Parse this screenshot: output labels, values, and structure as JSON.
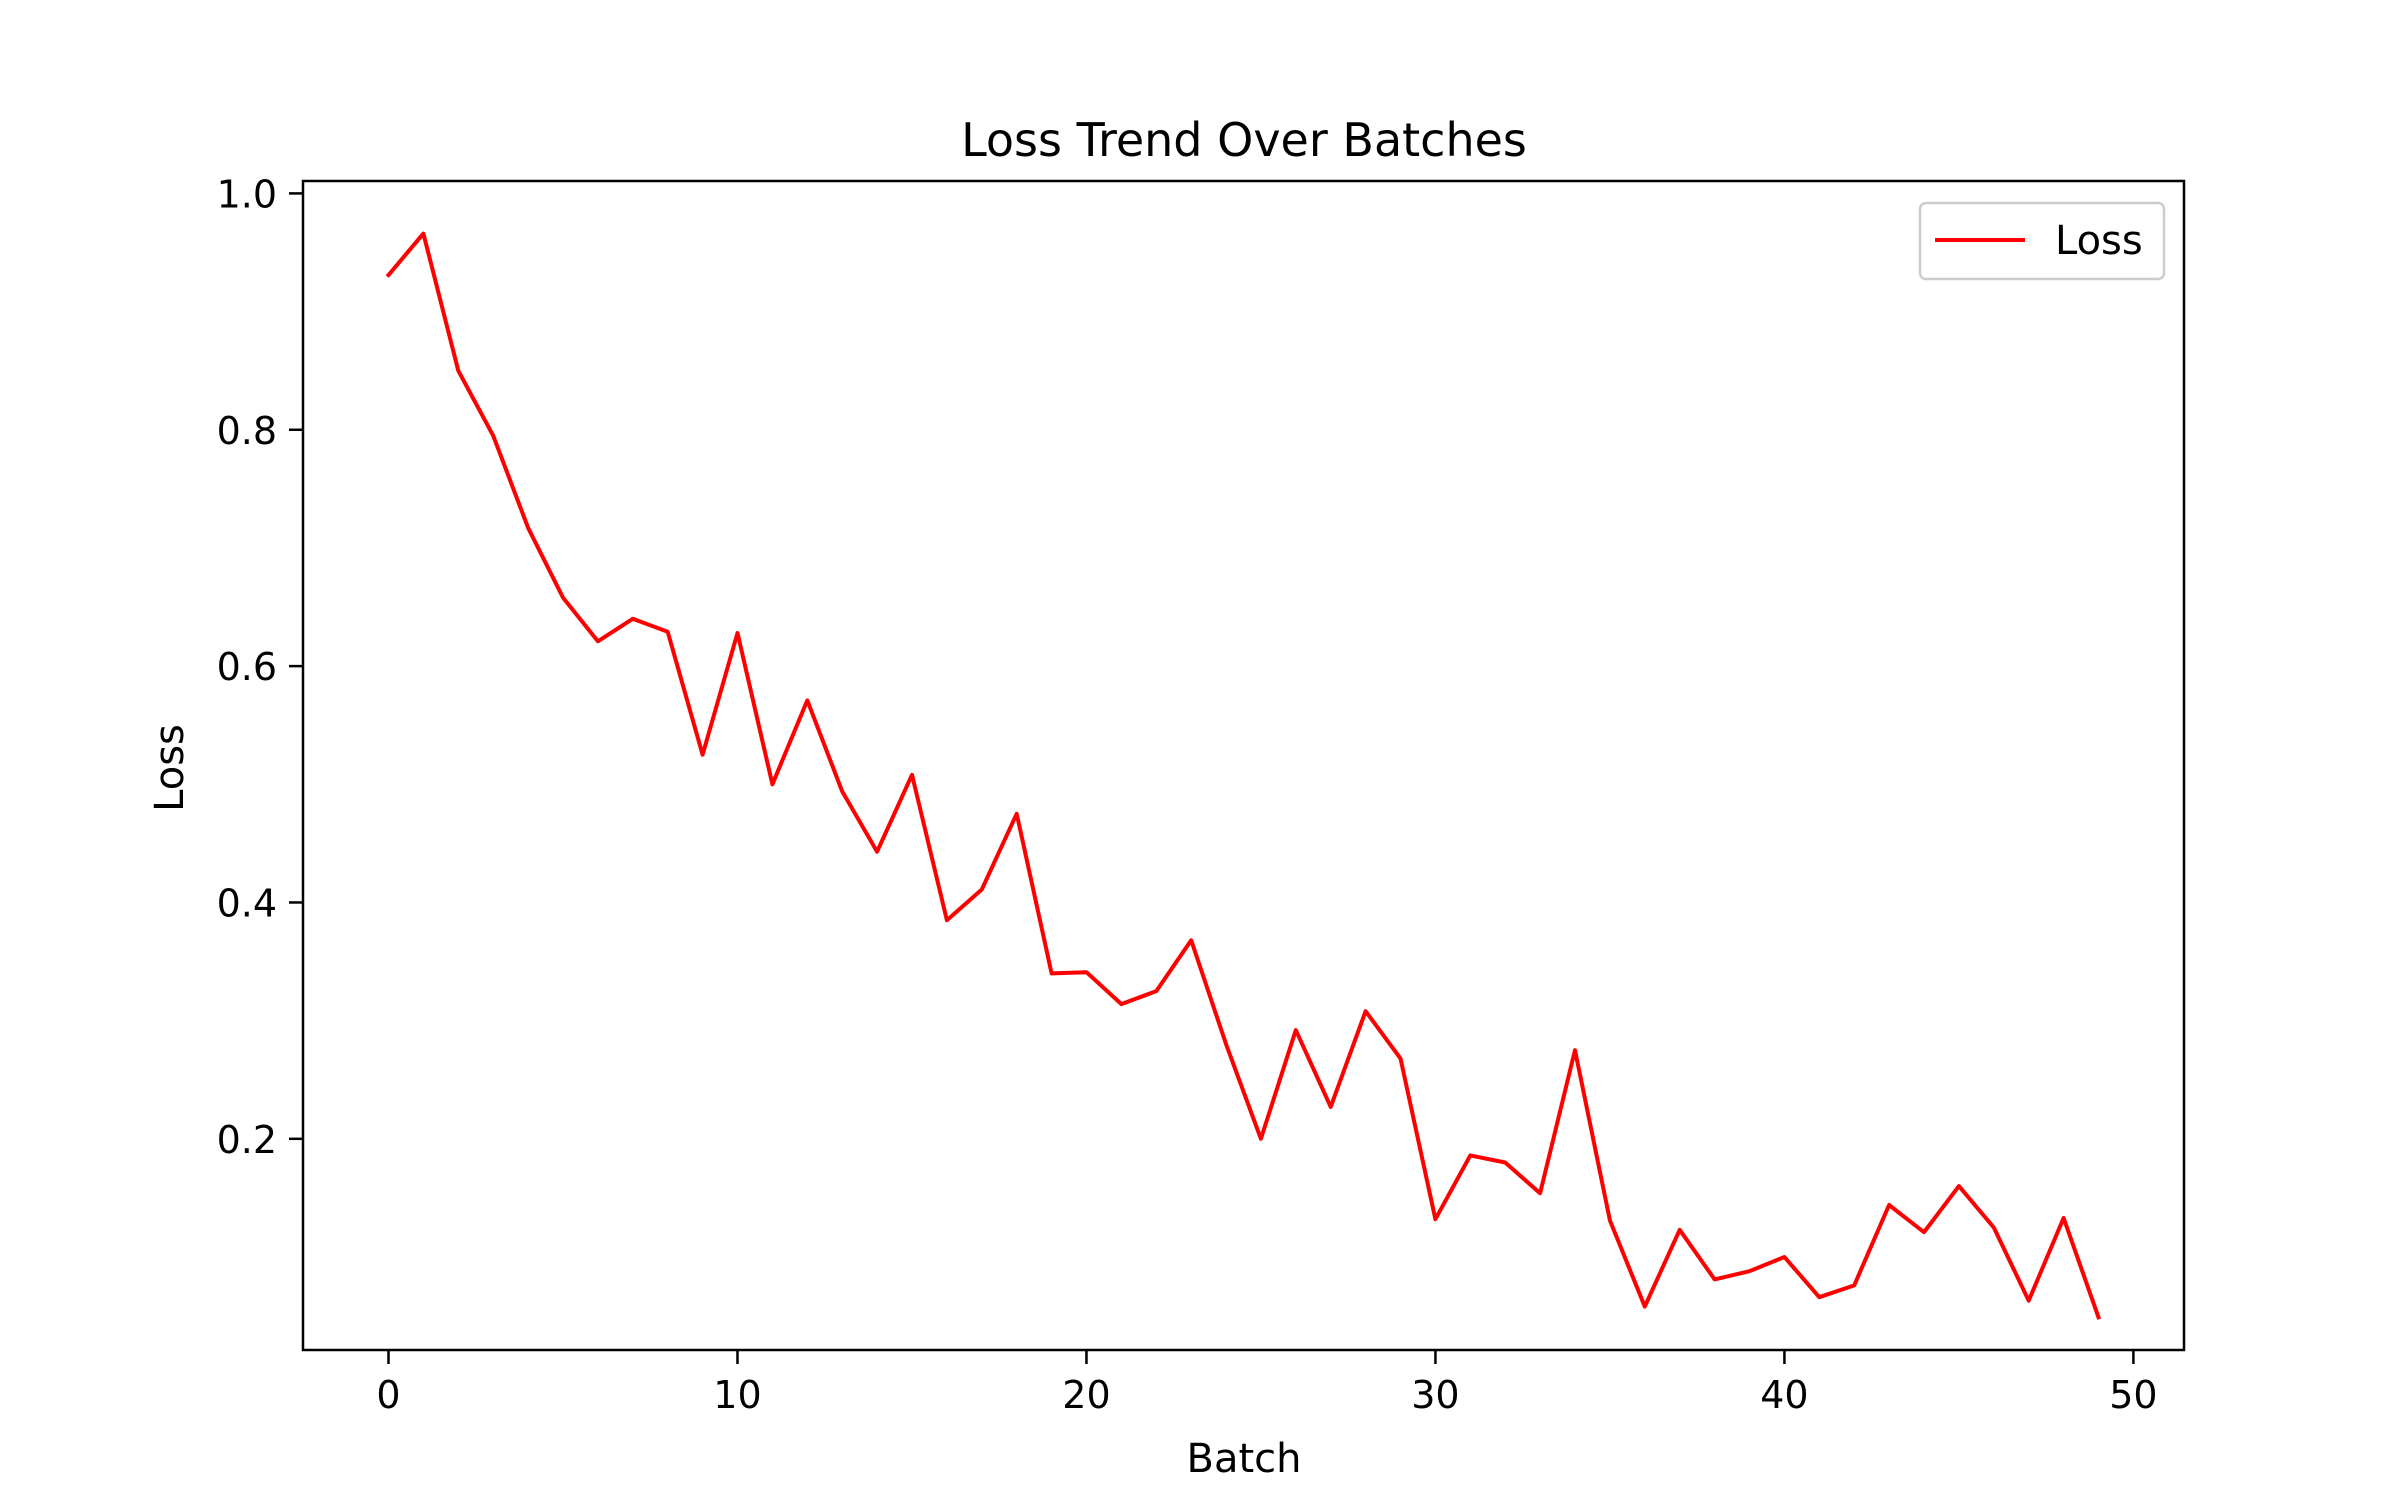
{
  "chart_data": {
    "type": "line",
    "title": "Loss Trend Over Batches",
    "xlabel": "Batch",
    "ylabel": "Loss",
    "xlim": [
      -2.45,
      51.45
    ],
    "ylim": [
      0.0213,
      1.0105
    ],
    "xticks": [
      0,
      10,
      20,
      30,
      40,
      50
    ],
    "xtick_labels": [
      "0",
      "10",
      "20",
      "30",
      "40",
      "50"
    ],
    "yticks": [
      0.2,
      0.4,
      0.6,
      0.8,
      1.0
    ],
    "ytick_labels": [
      "0.2",
      "0.4",
      "0.6",
      "0.8",
      "1.0"
    ],
    "grid": false,
    "legend": {
      "position": "top-right"
    },
    "series": [
      {
        "name": "Loss",
        "color": "#ff0000",
        "x": [
          0,
          1,
          2,
          3,
          4,
          5,
          6,
          7,
          8,
          9,
          10,
          11,
          12,
          13,
          14,
          15,
          16,
          17,
          18,
          19,
          20,
          21,
          22,
          23,
          24,
          25,
          26,
          27,
          28,
          29,
          30,
          31,
          32,
          33,
          34,
          35,
          36,
          37,
          38,
          39,
          40,
          41,
          42,
          43,
          44,
          45,
          46,
          47,
          48,
          49
        ],
        "y": [
          0.931,
          0.966,
          0.85,
          0.795,
          0.717,
          0.658,
          0.621,
          0.64,
          0.629,
          0.525,
          0.628,
          0.5,
          0.571,
          0.494,
          0.443,
          0.508,
          0.385,
          0.411,
          0.475,
          0.34,
          0.341,
          0.314,
          0.325,
          0.368,
          0.28,
          0.2,
          0.292,
          0.227,
          0.308,
          0.268,
          0.132,
          0.186,
          0.18,
          0.154,
          0.275,
          0.131,
          0.058,
          0.123,
          0.081,
          0.088,
          0.1,
          0.066,
          0.076,
          0.144,
          0.121,
          0.16,
          0.125,
          0.063,
          0.133,
          0.049
        ]
      }
    ]
  }
}
